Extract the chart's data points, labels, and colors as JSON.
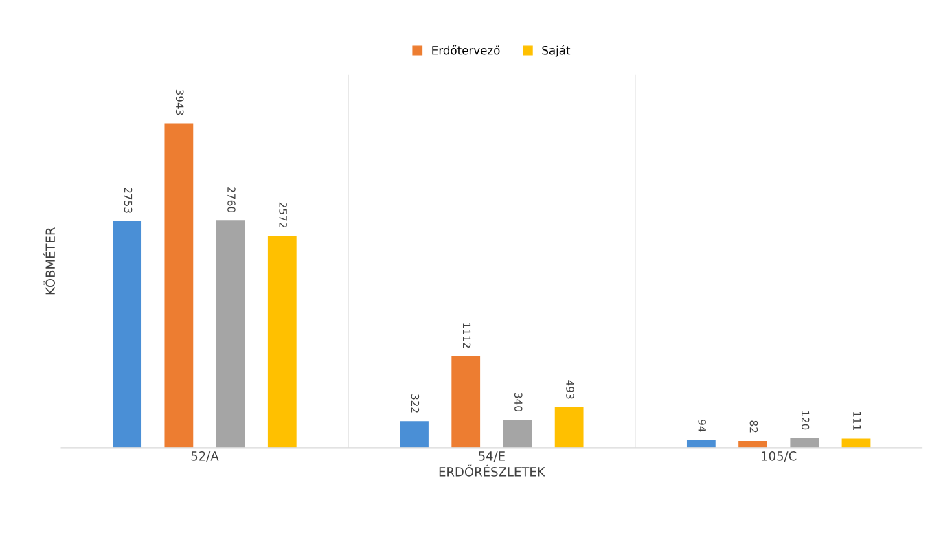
{
  "chart_data": {
    "type": "bar",
    "xlabel": "ERDŐRÉSZLETEK",
    "ylabel": "KÖBMÉTER",
    "categories": [
      "52/A",
      "54/E",
      "105/C"
    ],
    "series": [
      {
        "color": "#4a8fd6",
        "values": [
          2753,
          322,
          94
        ]
      },
      {
        "name": "Erdőtervező",
        "color": "#ed7d31",
        "values": [
          3943,
          1112,
          82
        ]
      },
      {
        "color": "#a5a5a5",
        "values": [
          2760,
          340,
          120
        ]
      },
      {
        "name": "Saját",
        "color": "#ffc000",
        "values": [
          2572,
          493,
          111
        ]
      }
    ],
    "data_labels": true,
    "legend": "top",
    "grid": "x",
    "tick_labels": "x"
  }
}
